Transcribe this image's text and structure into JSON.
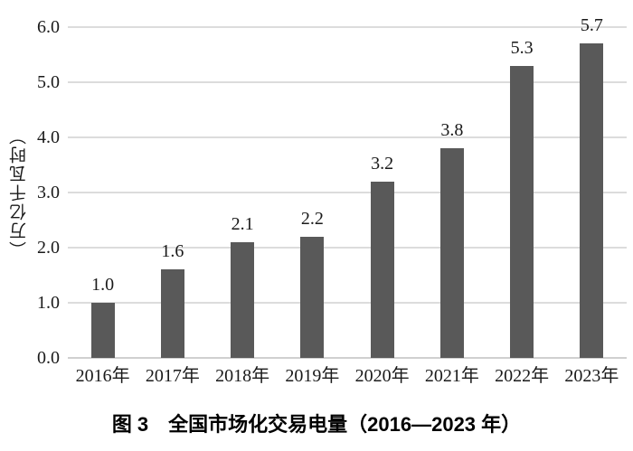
{
  "chart_data": {
    "type": "bar",
    "categories": [
      "2016年",
      "2017年",
      "2018年",
      "2019年",
      "2020年",
      "2021年",
      "2022年",
      "2023年"
    ],
    "values": [
      1.0,
      1.6,
      2.1,
      2.2,
      3.2,
      3.8,
      5.3,
      5.7
    ],
    "bar_labels": [
      "1.0",
      "1.6",
      "2.1",
      "2.2",
      "3.2",
      "3.8",
      "5.3",
      "5.7"
    ],
    "caption": "图 3　全国市场化交易电量（2016—2023 年）",
    "xlabel": "",
    "ylabel": "（万亿千瓦时）",
    "ylim": [
      0,
      6
    ],
    "yticks": [
      {
        "value": 0,
        "label": "0.0"
      },
      {
        "value": 1,
        "label": "1.0"
      },
      {
        "value": 2,
        "label": "2.0"
      },
      {
        "value": 3,
        "label": "3.0"
      },
      {
        "value": 4,
        "label": "4.0"
      },
      {
        "value": 5,
        "label": "5.0"
      },
      {
        "value": 6,
        "label": "6.0"
      }
    ],
    "grid": "horizontal-only",
    "legend": "none",
    "colors": {
      "bar": "#595959",
      "gridline": "#dcdcdc",
      "baseline": "#d0d0d0",
      "text": "#1a1a1a"
    }
  }
}
